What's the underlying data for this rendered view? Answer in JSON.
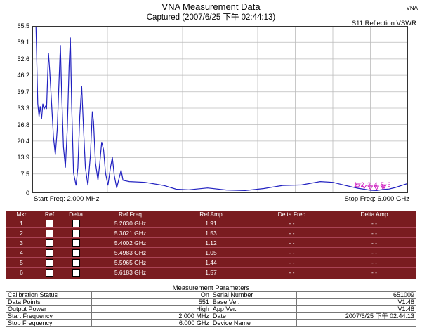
{
  "header": {
    "title": "VNA Measurement Data",
    "subtitle": "Captured  (2007/6/25 下午 02:44:13)",
    "corner": "VNA",
    "trace_label": "S11 Reflection:VSWR"
  },
  "plot": {
    "y_labels": [
      "65.5",
      "59.1",
      "52.6",
      "46.2",
      "39.7",
      "33.3",
      "26.8",
      "20.4",
      "13.9",
      "7.5",
      "0"
    ],
    "start_freq": "Start Freq: 2.000 MHz",
    "stop_freq": "Stop Freq: 6.000 GHz",
    "marker_numbers": "1 2 3 4 5 6",
    "trace_color": "#2020c0",
    "marker_color": "#d020c0",
    "grid_color": "#bbbbbb",
    "ylim": [
      0,
      65.5
    ],
    "xlim_ghz": [
      0.002,
      6.0
    ],
    "trace": [
      [
        0.002,
        65.5
      ],
      [
        0.06,
        65.5
      ],
      [
        0.09,
        35
      ],
      [
        0.11,
        30
      ],
      [
        0.13,
        34
      ],
      [
        0.15,
        29
      ],
      [
        0.17,
        35
      ],
      [
        0.19,
        33
      ],
      [
        0.21,
        34
      ],
      [
        0.23,
        33
      ],
      [
        0.26,
        55
      ],
      [
        0.28,
        48
      ],
      [
        0.31,
        35
      ],
      [
        0.34,
        22
      ],
      [
        0.37,
        15
      ],
      [
        0.4,
        25
      ],
      [
        0.43,
        45
      ],
      [
        0.45,
        58
      ],
      [
        0.47,
        40
      ],
      [
        0.5,
        18
      ],
      [
        0.53,
        10
      ],
      [
        0.56,
        25
      ],
      [
        0.59,
        50
      ],
      [
        0.61,
        61
      ],
      [
        0.63,
        35
      ],
      [
        0.66,
        8
      ],
      [
        0.7,
        3
      ],
      [
        0.73,
        10
      ],
      [
        0.76,
        30
      ],
      [
        0.79,
        42
      ],
      [
        0.82,
        25
      ],
      [
        0.85,
        10
      ],
      [
        0.89,
        3
      ],
      [
        0.93,
        15
      ],
      [
        0.96,
        32
      ],
      [
        0.98,
        28
      ],
      [
        1.01,
        12
      ],
      [
        1.05,
        5
      ],
      [
        1.08,
        12
      ],
      [
        1.11,
        20
      ],
      [
        1.14,
        17
      ],
      [
        1.17,
        8
      ],
      [
        1.21,
        3
      ],
      [
        1.25,
        10
      ],
      [
        1.28,
        14
      ],
      [
        1.31,
        7
      ],
      [
        1.35,
        2
      ],
      [
        1.39,
        6
      ],
      [
        1.42,
        9
      ],
      [
        1.45,
        5
      ],
      [
        1.55,
        4.5
      ],
      [
        1.8,
        4.2
      ],
      [
        2.1,
        3.0
      ],
      [
        2.3,
        1.5
      ],
      [
        2.5,
        1.3
      ],
      [
        2.8,
        2.0
      ],
      [
        3.1,
        1.2
      ],
      [
        3.4,
        1.0
      ],
      [
        3.7,
        1.8
      ],
      [
        4.0,
        3.0
      ],
      [
        4.3,
        3.2
      ],
      [
        4.6,
        4.5
      ],
      [
        4.8,
        4.2
      ],
      [
        5.0,
        3.0
      ],
      [
        5.2,
        1.9
      ],
      [
        5.3,
        1.5
      ],
      [
        5.4,
        1.1
      ],
      [
        5.5,
        1.0
      ],
      [
        5.6,
        1.4
      ],
      [
        5.7,
        1.6
      ],
      [
        5.8,
        2.2
      ],
      [
        5.9,
        3.0
      ],
      [
        6.0,
        3.8
      ]
    ]
  },
  "markers": {
    "headers": [
      "Mkr",
      "Ref",
      "Delta",
      "Ref Freq",
      "Ref Amp",
      "Delta Freq",
      "Delta Amp"
    ],
    "rows": [
      {
        "mkr": "1",
        "ref_freq": "5.2030 GHz",
        "ref_amp": "1.91",
        "delta_freq": "- -",
        "delta_amp": "- -"
      },
      {
        "mkr": "2",
        "ref_freq": "5.3021 GHz",
        "ref_amp": "1.53",
        "delta_freq": "- -",
        "delta_amp": "- -"
      },
      {
        "mkr": "3",
        "ref_freq": "5.4002 GHz",
        "ref_amp": "1.12",
        "delta_freq": "- -",
        "delta_amp": "- -"
      },
      {
        "mkr": "4",
        "ref_freq": "5.4983 GHz",
        "ref_amp": "1.05",
        "delta_freq": "- -",
        "delta_amp": "- -"
      },
      {
        "mkr": "5",
        "ref_freq": "5.5965 GHz",
        "ref_amp": "1.44",
        "delta_freq": "- -",
        "delta_amp": "- -"
      },
      {
        "mkr": "6",
        "ref_freq": "5.6183 GHz",
        "ref_amp": "1.57",
        "delta_freq": "- -",
        "delta_amp": "- -"
      }
    ]
  },
  "params": {
    "title": "Measurement Parameters",
    "rows": [
      {
        "l1": "Calibration Status",
        "v1": "On",
        "l2": "Serial Number",
        "v2": "651009"
      },
      {
        "l1": "Data Points",
        "v1": "551",
        "l2": "Base Ver.",
        "v2": "V1.48"
      },
      {
        "l1": "Output Power",
        "v1": "High",
        "l2": "App Ver.",
        "v2": "V1.48"
      },
      {
        "l1": "Start Frequency",
        "v1": "2.000 MHz",
        "l2": "Date",
        "v2": "2007/6/25 下午 02:44:13"
      },
      {
        "l1": "Stop Frequency",
        "v1": "6.000 GHz",
        "l2": "Device Name",
        "v2": ""
      }
    ]
  }
}
